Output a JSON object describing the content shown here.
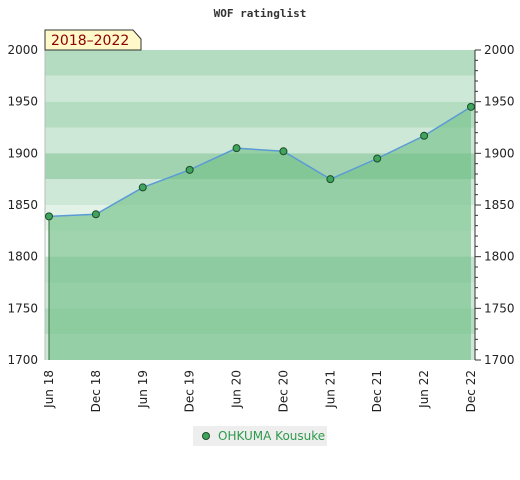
{
  "chart_data": {
    "type": "area",
    "title": "WOF ratinglist",
    "period_label": "2018–2022",
    "x": [
      "Jun 18",
      "Dec 18",
      "Jun 19",
      "Dec 19",
      "Jun 20",
      "Dec 20",
      "Jun 21",
      "Dec 21",
      "Jun 22",
      "Dec 22"
    ],
    "series": [
      {
        "name": "OHKUMA Kousuke",
        "values": [
          1839,
          1841,
          1867,
          1884,
          1905,
          1902,
          1875,
          1895,
          1917,
          1945
        ]
      }
    ],
    "ylim": [
      1700,
      2000
    ],
    "yticks": [
      1700,
      1750,
      1800,
      1850,
      1900,
      1950,
      2000
    ],
    "y_axes": "left and right",
    "legend_position": "bottom",
    "colors": {
      "line": "#5b9bd5",
      "fill": "#7cc490",
      "marker": "#3fa55d",
      "legend_text": "#2e9a4b",
      "band_colors": [
        "#b4dcc0",
        "#cde8d6",
        "#e2f2e7",
        "#f2f9f4"
      ]
    }
  }
}
